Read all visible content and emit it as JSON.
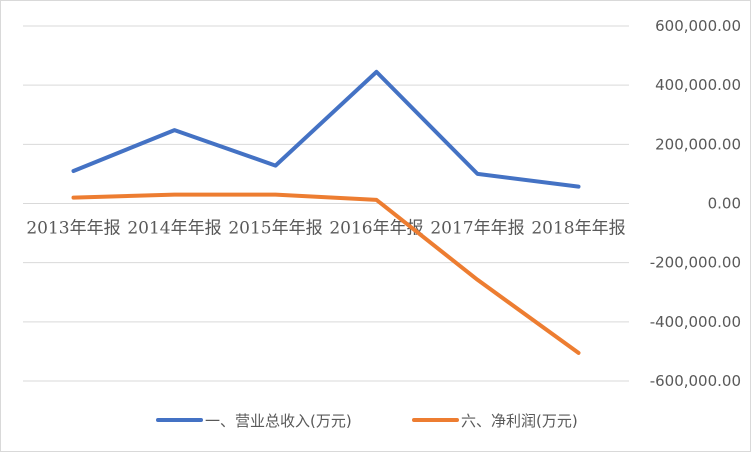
{
  "chart_data": {
    "type": "line",
    "categories": [
      "2013年年报",
      "2014年年报",
      "2015年年报",
      "2016年年报",
      "2017年年报",
      "2018年年报"
    ],
    "series": [
      {
        "name": "一、营业总收入(万元)",
        "color": "#4472c4",
        "values": [
          110000,
          248000,
          128000,
          445000,
          100000,
          57000
        ]
      },
      {
        "name": "六、净利润(万元)",
        "color": "#ed7d31",
        "values": [
          20000,
          30000,
          30000,
          12000,
          -258000,
          -505000
        ]
      }
    ],
    "y_ticks": [
      "600,000.00",
      "400,000.00",
      "200,000.00",
      "0.00",
      "-200,000.00",
      "-400,000.00",
      "-600,000.00"
    ],
    "ylim": [
      -600000,
      600000
    ],
    "y_axis_side": "right",
    "grid": true,
    "legend_position": "bottom"
  }
}
